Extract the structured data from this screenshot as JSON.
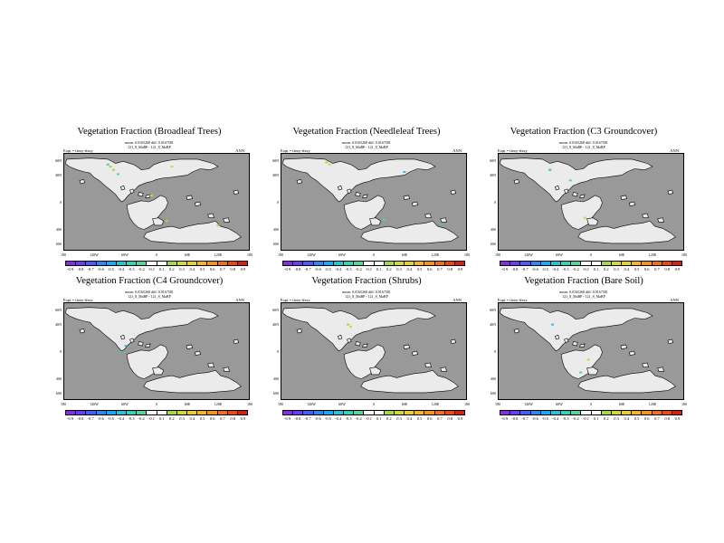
{
  "panels": [
    {
      "title": "Vegetation Fraction (Broadleaf Trees)",
      "stats": "mean: 0.0165268 diff: 0.0167581",
      "expt_line": "Expt = tfzzy-tfzzy",
      "ids": "121_8_MaBP - 121_8_MaBP",
      "period": "ANN"
    },
    {
      "title": "Vegetation Fraction (Needleleaf Trees)",
      "stats": "mean: 0.0165268 diff: 0.0167581",
      "expt_line": "Expt = tfzzy-tfzzy",
      "ids": "121_8_MaBP - 121_8_MaBP",
      "period": "ANN"
    },
    {
      "title": "Vegetation Fraction (C3 Groundcover)",
      "stats": "mean: 0.0165268 diff: 0.0167581",
      "expt_line": "Expt = tfzzy-tfzzy",
      "ids": "121_8_MaBP - 121_8_MaBP",
      "period": "ANN"
    },
    {
      "title": "Vegetation Fraction (C4 Groundcover)",
      "stats": "mean: 0.0165268 diff: 0.0167581",
      "expt_line": "Expt = tfzzy-tfzzy",
      "ids": "121_8_MaBP - 121_8_MaBP",
      "period": "ANN"
    },
    {
      "title": "Vegetation Fraction (Shrubs)",
      "stats": "mean: 0.0165268 diff: 0.0167581",
      "expt_line": "Expt = tfzzy-tfzzy",
      "ids": "121_8_MaBP - 121_8_MaBP",
      "period": "ANN"
    },
    {
      "title": "Vegetation Fraction (Bare Soil)",
      "stats": "mean: 0.0165268 diff: 0.0167581",
      "expt_line": "Expt = tfzzy-tfzzy",
      "ids": "121_8_MaBP - 121_8_MaBP",
      "period": "ANN"
    }
  ],
  "map": {
    "lat_labels": [
      "60N",
      "40N",
      "0",
      "40S",
      "60S"
    ],
    "lon_labels": [
      "180",
      "120W",
      "60W",
      "0",
      "60E",
      "120E",
      "180"
    ],
    "ocean_color": "#999999",
    "land_color": "#ebebeb"
  },
  "colorbar": {
    "labels": [
      "-0.9",
      "-0.8",
      "-0.7",
      "-0.6",
      "-0.5",
      "-0.4",
      "-0.3",
      "-0.2",
      "-0.1",
      "0.1",
      "0.2",
      "0.3",
      "0.4",
      "0.5",
      "0.6",
      "0.7",
      "0.8",
      "0.9"
    ],
    "colors": [
      "#8a2be2",
      "#6a3df0",
      "#4a5cf5",
      "#2e86f7",
      "#20a6f0",
      "#27c1d8",
      "#36cfc0",
      "#55d59b",
      "#ffffff",
      "#ffffff",
      "#a6d845",
      "#cfd935",
      "#e6d02a",
      "#f2b525",
      "#f29420",
      "#ee6f1c",
      "#e84a17",
      "#d91e12"
    ]
  }
}
